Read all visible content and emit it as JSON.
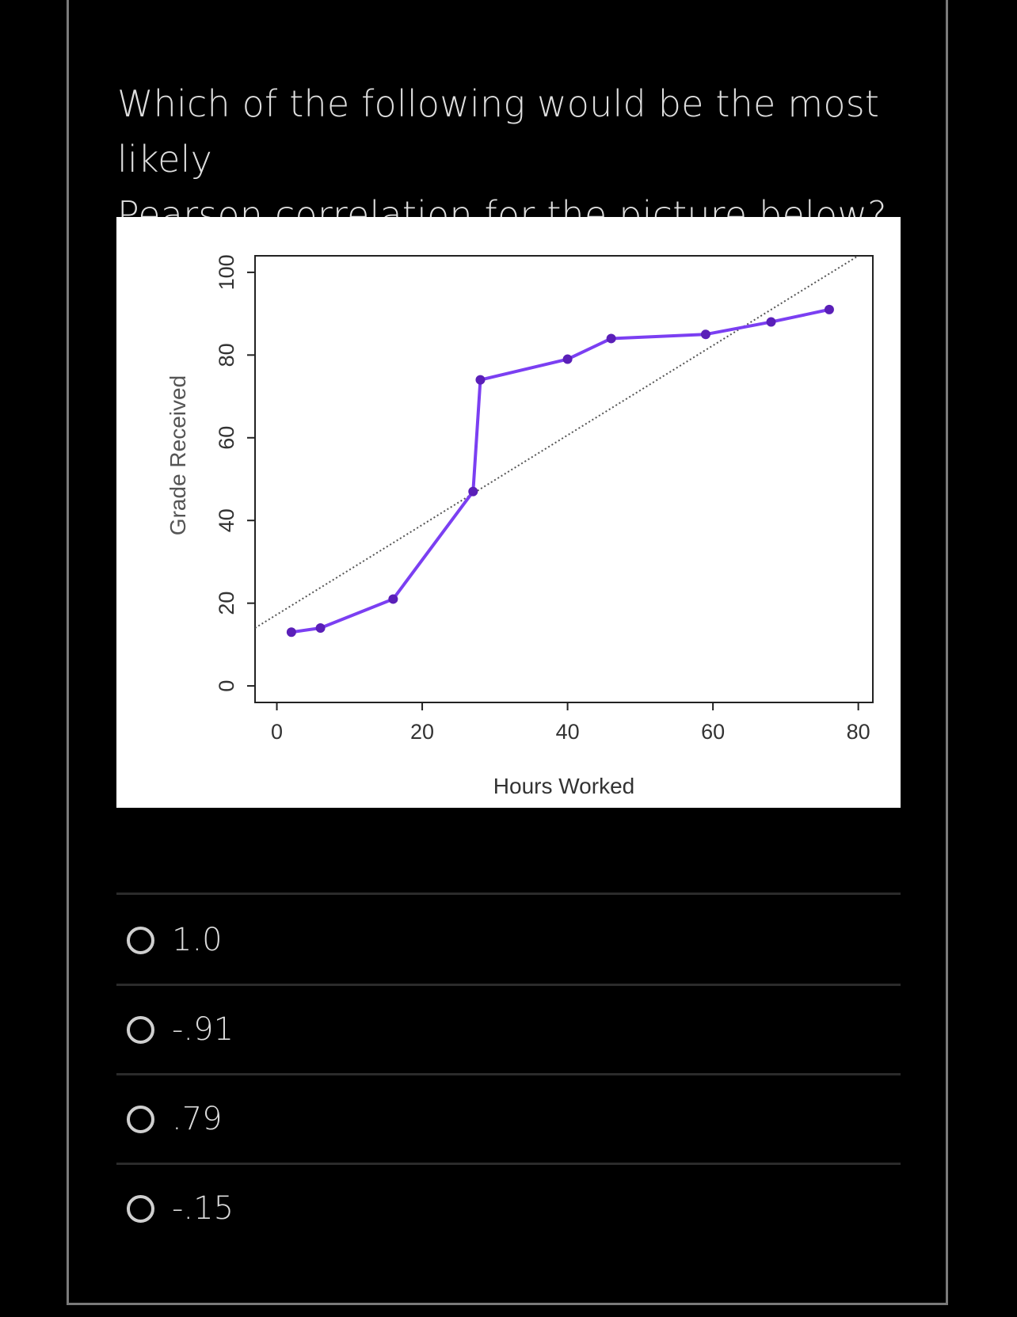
{
  "question": {
    "line1": "Which of the following would be the most likely",
    "line2": "Pearson correlation for the picture below?"
  },
  "options": [
    {
      "label": "1.0"
    },
    {
      "label": "-.91"
    },
    {
      "label": ".79"
    },
    {
      "label": "-.15"
    }
  ],
  "colors": {
    "series": "#7b3ff2",
    "point": "#5a1fb8",
    "background": "#000000",
    "divider": "#2b2b2b"
  },
  "chart_data": {
    "type": "line",
    "xlabel": "Hours Worked",
    "ylabel": "Grade Received",
    "xlim": [
      -3,
      82
    ],
    "ylim": [
      -4,
      104
    ],
    "xticks": [
      0,
      20,
      40,
      60,
      80
    ],
    "yticks": [
      0,
      20,
      40,
      60,
      80,
      100
    ],
    "xtick_labels": [
      "0",
      "20",
      "40",
      "60",
      "80"
    ],
    "ytick_labels": [
      "0",
      "20",
      "40",
      "60",
      "80",
      "100"
    ],
    "grid": false,
    "series": [
      {
        "x": [
          2,
          6,
          16,
          27,
          28,
          40,
          46,
          59,
          68,
          76
        ],
        "y": [
          13,
          14,
          21,
          47,
          74,
          79,
          84,
          85,
          88,
          91
        ]
      }
    ],
    "trendline": {
      "style": "dotted",
      "x": [
        -3,
        80
      ],
      "y": [
        14,
        104
      ]
    }
  }
}
